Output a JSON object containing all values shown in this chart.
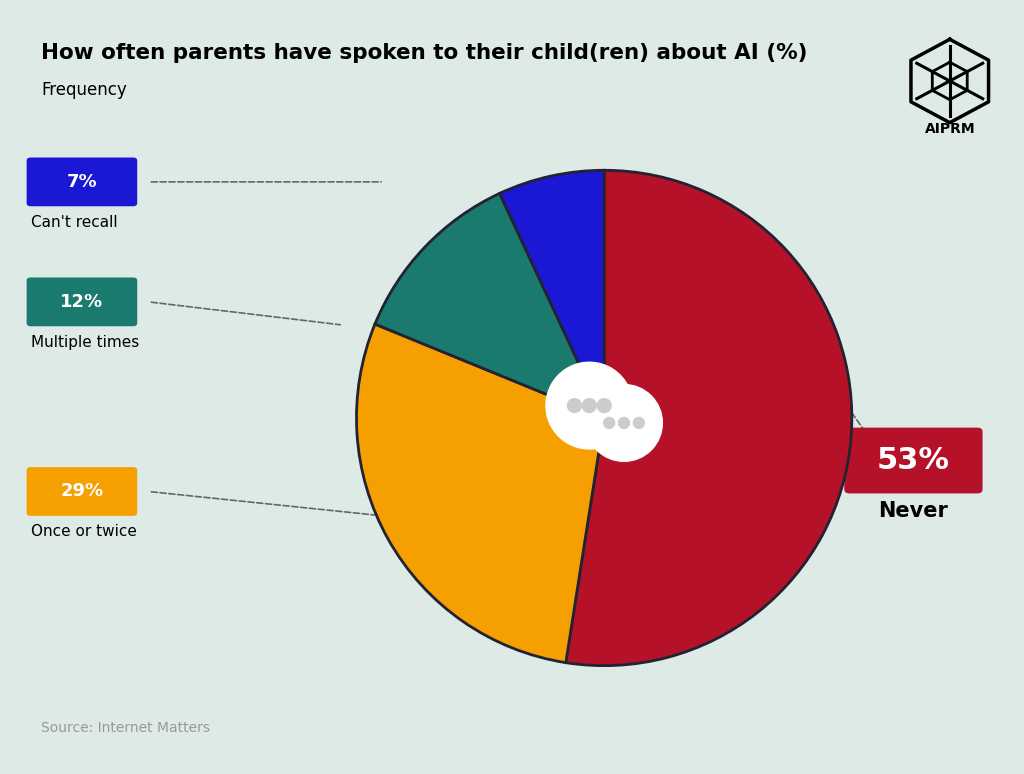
{
  "title": "How often parents have spoken to their child(ren) about AI (%)",
  "subtitle": "Frequency",
  "source": "Source: Internet Matters",
  "background_color": "#ddeae6",
  "slices": [
    53,
    29,
    12,
    7
  ],
  "labels": [
    "Never",
    "Once or twice",
    "Multiple times",
    "Can't recall"
  ],
  "colors": [
    "#b5122a",
    "#f5a000",
    "#1a7a6e",
    "#1a18d4"
  ],
  "percentages": [
    "53%",
    "29%",
    "12%",
    "7%"
  ],
  "startangle": 90
}
